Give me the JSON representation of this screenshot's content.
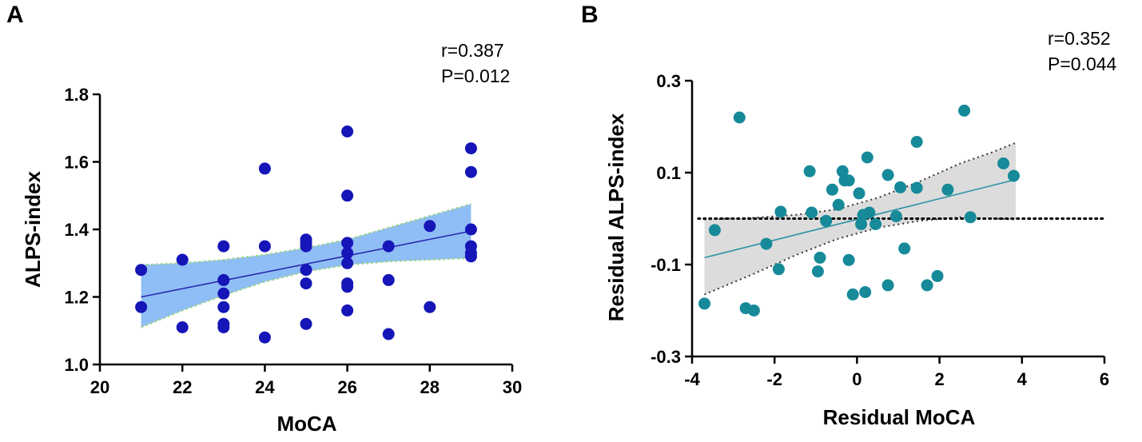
{
  "chart_data": [
    {
      "type": "scatter",
      "panel": "A",
      "xlabel": "MoCA",
      "ylabel": "ALPS-index",
      "xlim": [
        20,
        30
      ],
      "ylim": [
        1.0,
        1.8
      ],
      "xticks": [
        20,
        22,
        24,
        26,
        28,
        30
      ],
      "yticks": [
        1.0,
        1.2,
        1.4,
        1.6,
        1.8
      ],
      "stats": [
        "r=0.387",
        "P=0.012"
      ],
      "colors": {
        "points": "#1515b8",
        "line": "#2a2ab0",
        "band": "#8fbdf5",
        "band_edge": "#9ad48a"
      },
      "fit": {
        "x": [
          21,
          29
        ],
        "y": [
          1.2,
          1.395
        ]
      },
      "ci_band": {
        "x": [
          21,
          22,
          23,
          24,
          25,
          26,
          27,
          28,
          29
        ],
        "lower": [
          1.11,
          1.16,
          1.205,
          1.245,
          1.275,
          1.295,
          1.305,
          1.31,
          1.315
        ],
        "upper": [
          1.295,
          1.3,
          1.31,
          1.325,
          1.345,
          1.37,
          1.405,
          1.44,
          1.475
        ]
      },
      "points": [
        [
          21,
          1.28
        ],
        [
          21,
          1.17
        ],
        [
          22,
          1.31
        ],
        [
          22,
          1.11
        ],
        [
          23,
          1.35
        ],
        [
          23,
          1.25
        ],
        [
          23,
          1.21
        ],
        [
          23,
          1.17
        ],
        [
          23,
          1.12
        ],
        [
          23,
          1.11
        ],
        [
          24,
          1.58
        ],
        [
          24,
          1.35
        ],
        [
          24,
          1.08
        ],
        [
          25,
          1.37
        ],
        [
          25,
          1.36
        ],
        [
          25,
          1.35
        ],
        [
          25,
          1.28
        ],
        [
          25,
          1.24
        ],
        [
          25,
          1.12
        ],
        [
          26,
          1.69
        ],
        [
          26,
          1.5
        ],
        [
          26,
          1.36
        ],
        [
          26,
          1.33
        ],
        [
          26,
          1.3
        ],
        [
          26,
          1.24
        ],
        [
          26,
          1.23
        ],
        [
          26,
          1.16
        ],
        [
          27,
          1.35
        ],
        [
          27,
          1.25
        ],
        [
          27,
          1.09
        ],
        [
          28,
          1.41
        ],
        [
          28,
          1.17
        ],
        [
          29,
          1.64
        ],
        [
          29,
          1.57
        ],
        [
          29,
          1.4
        ],
        [
          29,
          1.35
        ],
        [
          29,
          1.33
        ],
        [
          29,
          1.32
        ]
      ]
    },
    {
      "type": "scatter",
      "panel": "B",
      "xlabel": "Residual MoCA",
      "ylabel": "Residual ALPS-index",
      "xlim": [
        -4,
        6
      ],
      "ylim": [
        -0.3,
        0.3
      ],
      "xticks": [
        -4,
        -2,
        0,
        2,
        4,
        6
      ],
      "yticks": [
        -0.3,
        -0.1,
        0.1,
        0.3
      ],
      "stats": [
        "r=0.352",
        "P=0.044"
      ],
      "colors": {
        "points": "#168a99",
        "line": "#2e95a8",
        "band": "#dcdcdc",
        "band_edge": "#333333",
        "zero_line": "#000000"
      },
      "zero_line": {
        "y": 0,
        "xlim": [
          -3.85,
          6
        ]
      },
      "fit": {
        "x": [
          -3.7,
          3.85
        ],
        "y": [
          -0.085,
          0.085
        ]
      },
      "ci_band": {
        "x": [
          -3.7,
          -2.5,
          -1.5,
          -0.5,
          0.5,
          1.5,
          2.5,
          3.3,
          3.85
        ],
        "lower": [
          -0.165,
          -0.12,
          -0.08,
          -0.045,
          -0.02,
          -0.005,
          0.003,
          0.0,
          -0.002
        ],
        "upper": [
          -0.002,
          0.002,
          0.008,
          0.02,
          0.045,
          0.08,
          0.12,
          0.145,
          0.165
        ]
      },
      "points": [
        [
          -3.7,
          -0.185
        ],
        [
          -3.45,
          -0.025
        ],
        [
          -2.85,
          0.22
        ],
        [
          -2.7,
          -0.195
        ],
        [
          -2.5,
          -0.2
        ],
        [
          -2.2,
          -0.055
        ],
        [
          -1.9,
          -0.11
        ],
        [
          -1.85,
          0.015
        ],
        [
          -1.15,
          0.103
        ],
        [
          -1.1,
          0.013
        ],
        [
          -0.95,
          -0.115
        ],
        [
          -0.9,
          -0.085
        ],
        [
          -0.75,
          -0.005
        ],
        [
          -0.6,
          0.063
        ],
        [
          -0.45,
          0.03
        ],
        [
          -0.35,
          0.103
        ],
        [
          -0.3,
          0.083
        ],
        [
          -0.2,
          0.083
        ],
        [
          -0.2,
          -0.09
        ],
        [
          -0.1,
          -0.165
        ],
        [
          0.05,
          0.055
        ],
        [
          0.1,
          -0.012
        ],
        [
          0.15,
          0.008
        ],
        [
          0.2,
          -0.16
        ],
        [
          0.25,
          0.133
        ],
        [
          0.3,
          0.013
        ],
        [
          0.45,
          -0.012
        ],
        [
          0.75,
          0.095
        ],
        [
          0.75,
          -0.145
        ],
        [
          0.95,
          0.005
        ],
        [
          1.05,
          0.068
        ],
        [
          1.15,
          -0.065
        ],
        [
          1.45,
          0.167
        ],
        [
          1.45,
          0.067
        ],
        [
          1.7,
          -0.145
        ],
        [
          1.95,
          -0.125
        ],
        [
          2.2,
          0.063
        ],
        [
          2.6,
          0.235
        ],
        [
          2.75,
          0.003
        ],
        [
          3.55,
          0.12
        ],
        [
          3.8,
          0.093
        ]
      ]
    }
  ]
}
